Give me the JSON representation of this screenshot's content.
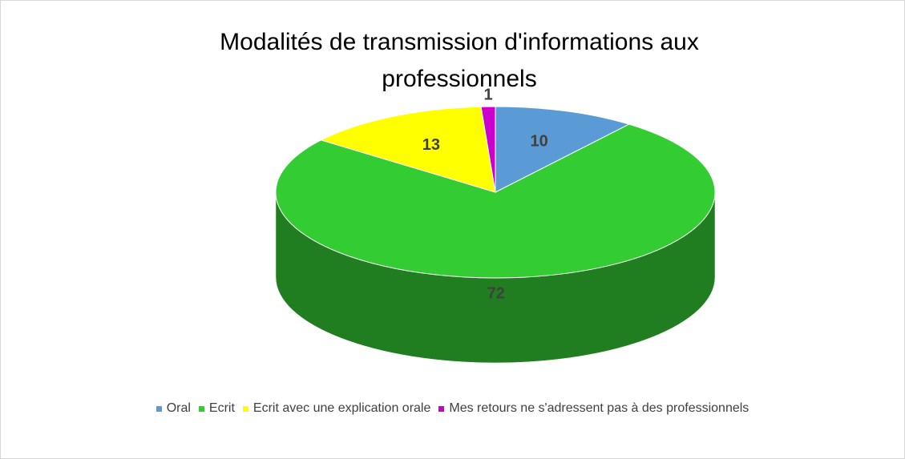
{
  "chart_data": {
    "type": "pie3d",
    "title": "Modalités de transmission d'informations aux professionnels",
    "categories": [
      "Oral",
      "Ecrit",
      "Ecrit avec une explication orale",
      "Mes retours ne s'adressent pas à des professionnels"
    ],
    "values": [
      10,
      72,
      13,
      1
    ],
    "colors": [
      "#5b9bd5",
      "#33cc33",
      "#ffff00",
      "#cc00cc"
    ],
    "legend": "bottom"
  }
}
